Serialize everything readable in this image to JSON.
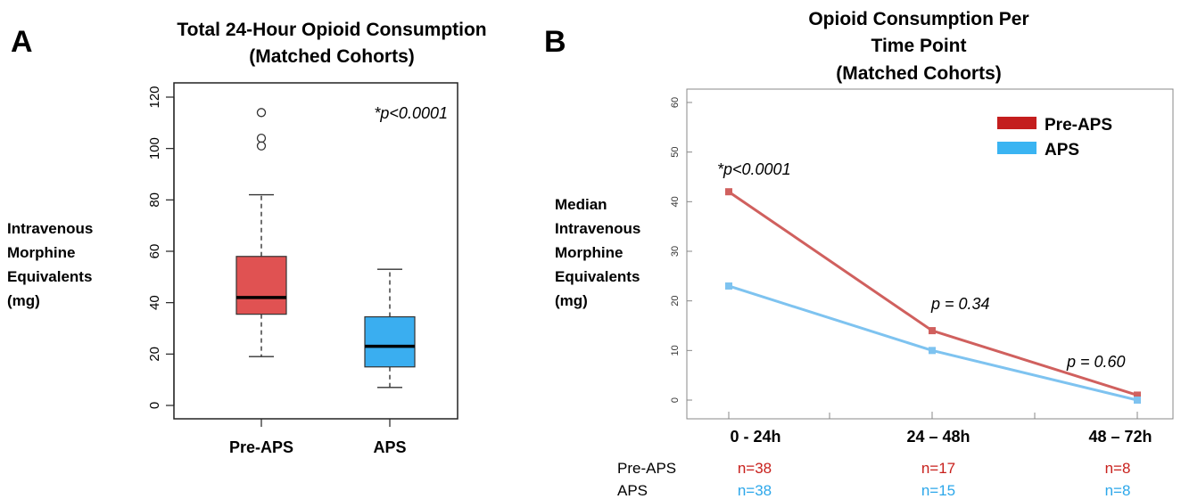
{
  "panel_a": {
    "letter": "A",
    "title_line1": "Total 24-Hour Opioid Consumption",
    "title_line2": "(Matched Cohorts)",
    "ylabel_lines": [
      "Intravenous",
      "Morphine",
      "Equivalents",
      "(mg)"
    ],
    "annotation": "*p<0.0001"
  },
  "panel_b": {
    "letter": "B",
    "title_lines": [
      "Opioid Consumption Per",
      "Time Point",
      "(Matched Cohorts)"
    ],
    "ylabel_lines": [
      "Median",
      "Intravenous",
      "Morphine",
      "Equivalents",
      "(mg)"
    ],
    "annotations": [
      "*p<0.0001",
      "p = 0.34",
      "p = 0.60"
    ],
    "n_table": {
      "row_labels": [
        "Pre-APS",
        "APS"
      ],
      "pre_aps": [
        "n=38",
        "n=17",
        "n=8"
      ],
      "aps": [
        "n=38",
        "n=15",
        "n=8"
      ]
    }
  },
  "chart_data": [
    {
      "type": "box",
      "title": "Total 24-Hour Opioid Consumption (Matched Cohorts)",
      "ylabel": "Intravenous Morphine Equivalents (mg)",
      "categories": [
        "Pre-APS",
        "APS"
      ],
      "ylim": [
        0,
        120
      ],
      "yticks": [
        0,
        20,
        40,
        60,
        80,
        100,
        120
      ],
      "boxes": [
        {
          "name": "Pre-APS",
          "color": "#e05252",
          "whisker_low": 19,
          "q1": 35.5,
          "median": 42,
          "q3": 58,
          "whisker_high": 82,
          "outliers": [
            101,
            104,
            114
          ]
        },
        {
          "name": "APS",
          "color": "#3aaef0",
          "whisker_low": 7,
          "q1": 15,
          "median": 23,
          "q3": 34.5,
          "whisker_high": 53,
          "outliers": []
        }
      ],
      "grid": false
    },
    {
      "type": "line",
      "title": "Opioid Consumption Per Time Point (Matched Cohorts)",
      "ylabel": "Median Intravenous Morphine Equivalents (mg)",
      "categories": [
        "0 - 24h",
        "24 – 48h",
        "48 – 72h"
      ],
      "ylim": [
        0,
        60
      ],
      "yticks": [
        0,
        10,
        20,
        30,
        40,
        50,
        60
      ],
      "series": [
        {
          "name": "Pre-APS",
          "color": "#d0605e",
          "values": [
            42,
            14,
            1
          ]
        },
        {
          "name": "APS",
          "color": "#7ec3f0",
          "values": [
            23,
            10,
            0
          ]
        }
      ],
      "legend": {
        "position": "top-right",
        "entries": [
          {
            "label": "Pre-APS",
            "color": "#c41e1e"
          },
          {
            "label": "APS",
            "color": "#3ab4f2"
          }
        ]
      },
      "grid": false
    }
  ]
}
